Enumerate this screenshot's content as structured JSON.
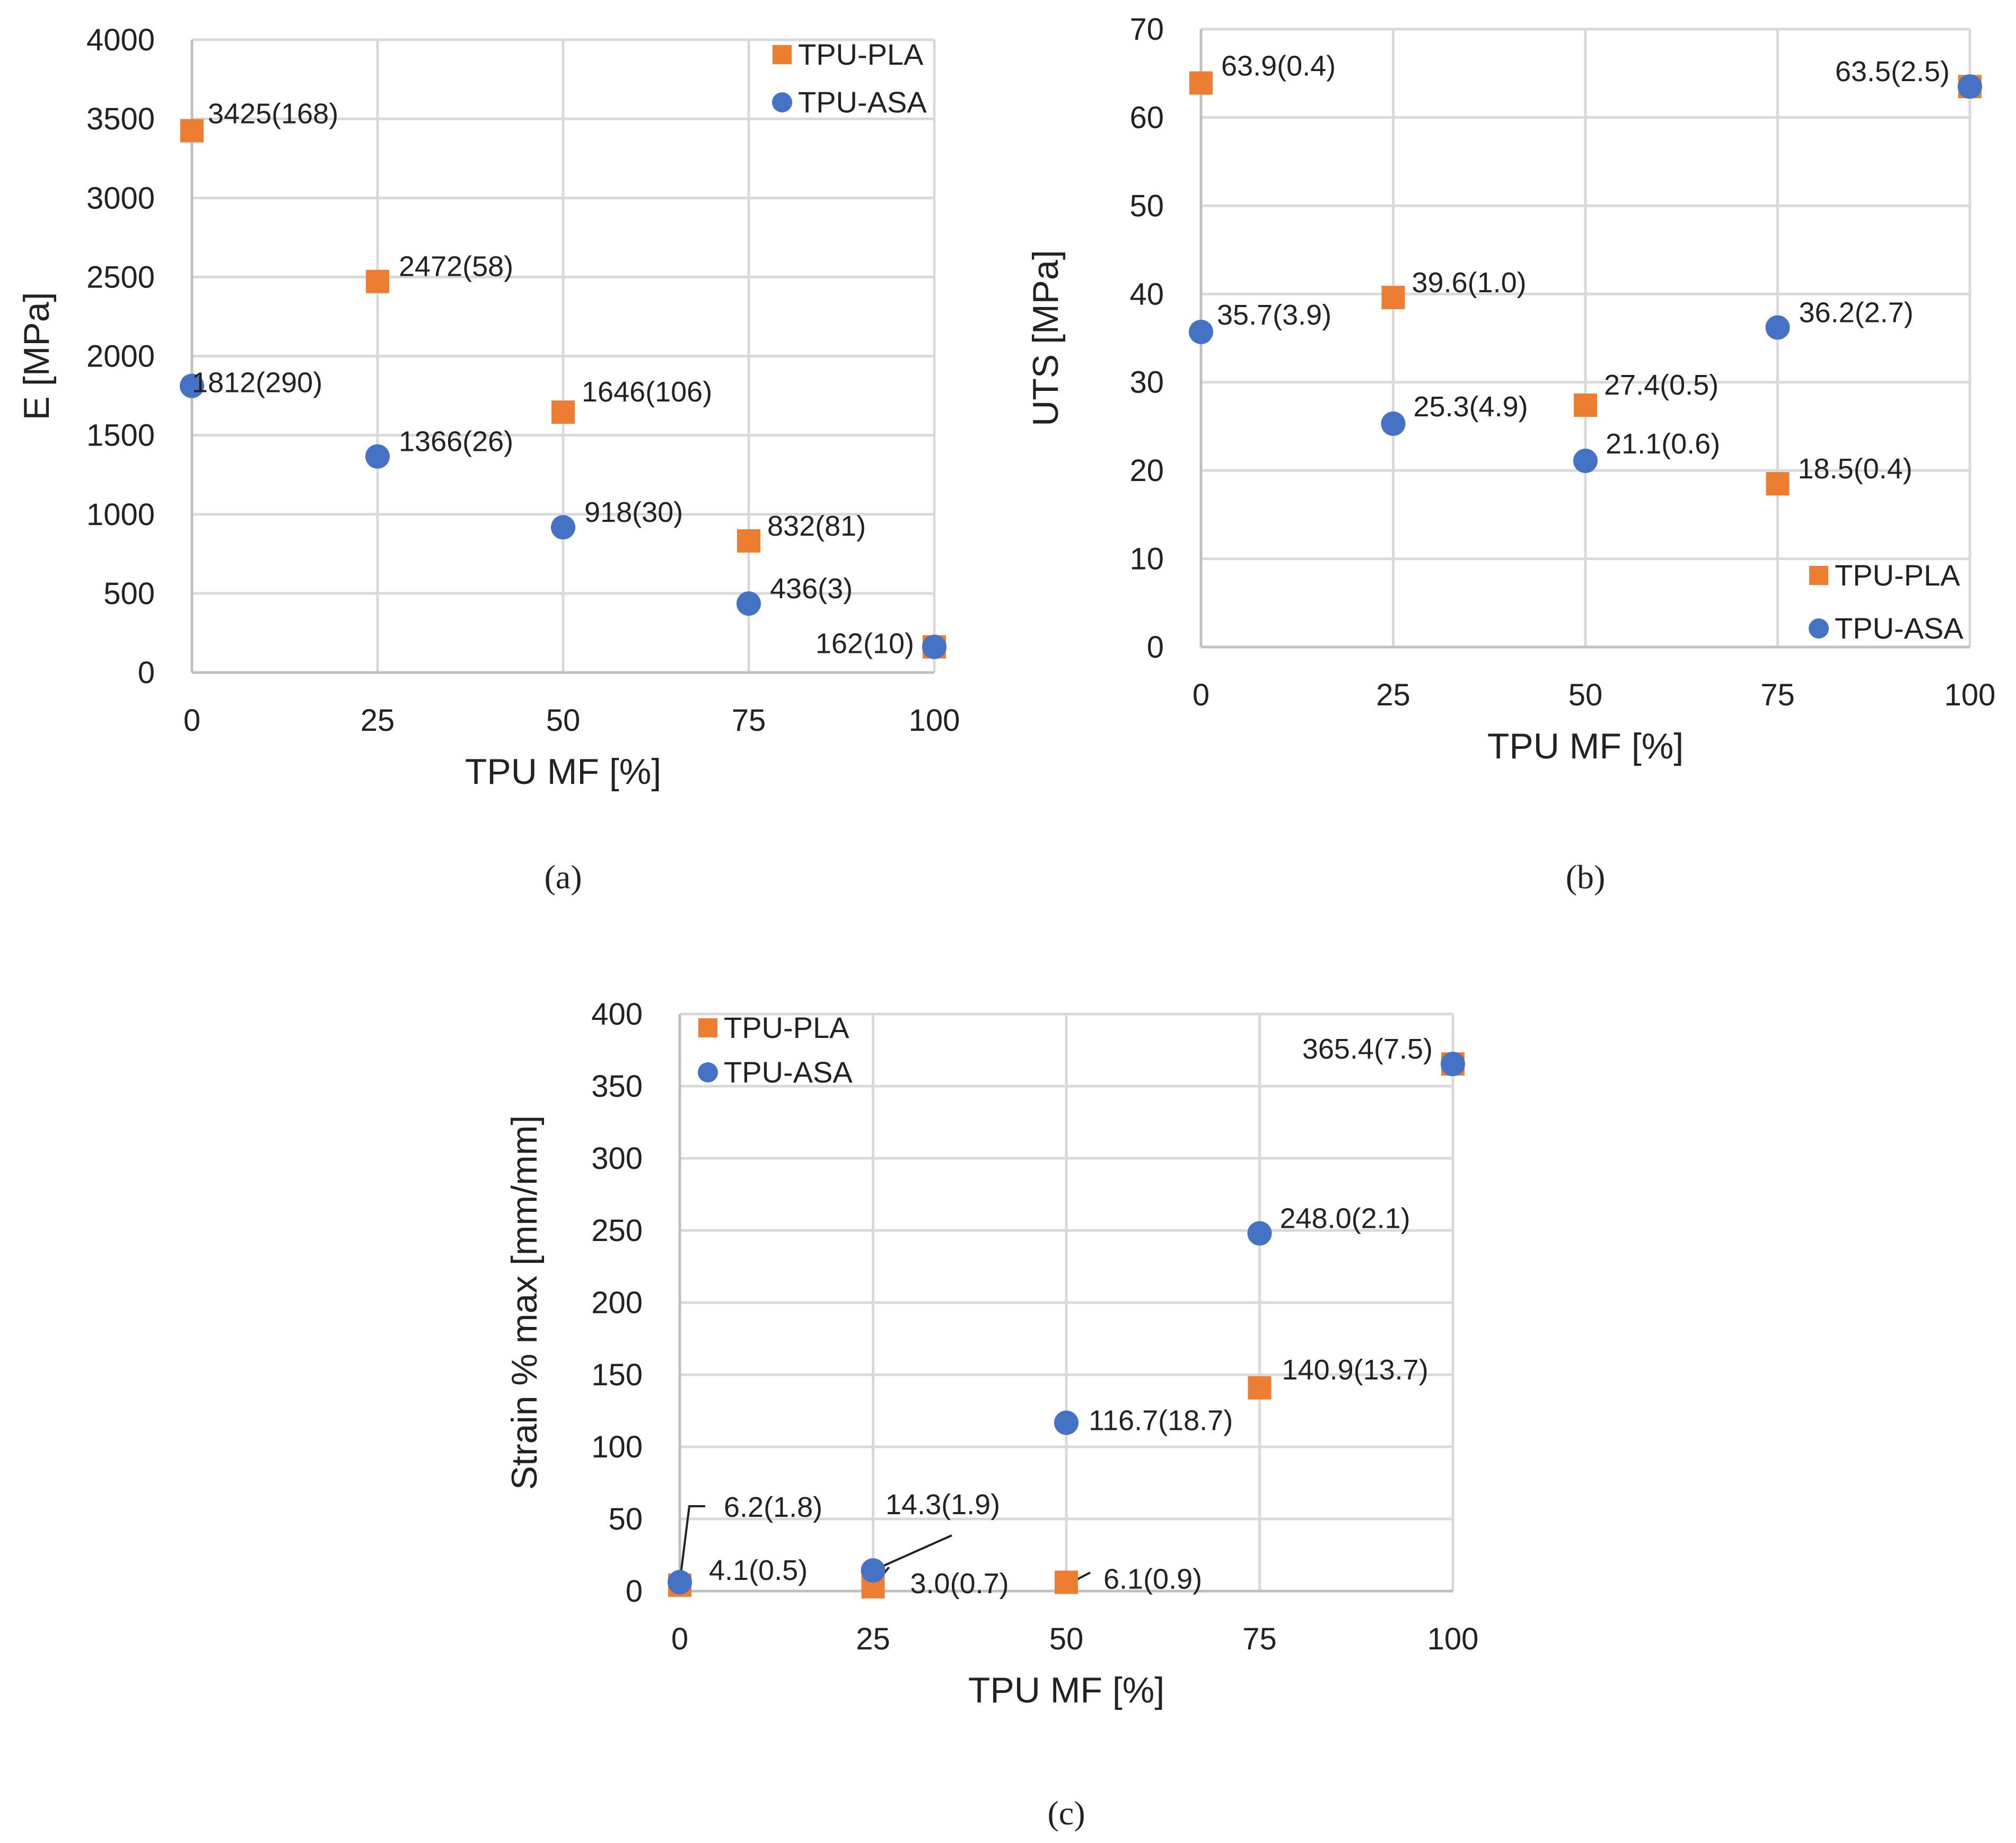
{
  "colors": {
    "pla": "#ED7D31",
    "asa": "#4472C4",
    "grid": "#D9D9D9",
    "axis": "#BFBFBF"
  },
  "chart_data": [
    {
      "type": "scatter",
      "panel_label": "(a)",
      "panel_letter": "a",
      "xlabel": "TPU MF [%]",
      "ylabel": "E [MPa]",
      "xlim": [
        0,
        100
      ],
      "ylim": [
        0,
        4000
      ],
      "xticks": [
        0,
        25,
        50,
        75,
        100
      ],
      "yticks": [
        0,
        500,
        1000,
        1500,
        2000,
        2500,
        3000,
        3500,
        4000
      ],
      "legend_position": "top-right",
      "series": [
        {
          "name": "TPU-PLA",
          "marker": "square",
          "x": [
            0,
            25,
            50,
            75,
            100
          ],
          "y": [
            3425,
            2472,
            1646,
            832,
            162
          ],
          "labels": [
            "3425(168)",
            "2472(58)",
            "1646(106)",
            "832(81)",
            "162(10)"
          ]
        },
        {
          "name": "TPU-ASA",
          "marker": "circle",
          "x": [
            0,
            25,
            50,
            75,
            100
          ],
          "y": [
            1812,
            1366,
            918,
            436,
            162
          ],
          "labels": [
            "1812(290)",
            "1366(26)",
            "918(30)",
            "436(3)",
            ""
          ]
        }
      ]
    },
    {
      "type": "scatter",
      "panel_label": "(b)",
      "panel_letter": "b",
      "xlabel": "TPU MF [%]",
      "ylabel": "UTS [MPa]",
      "xlim": [
        0,
        100
      ],
      "ylim": [
        0,
        70
      ],
      "xticks": [
        0,
        25,
        50,
        75,
        100
      ],
      "yticks": [
        0,
        10,
        20,
        30,
        40,
        50,
        60,
        70
      ],
      "legend_position": "bottom-right",
      "series": [
        {
          "name": "TPU-PLA",
          "marker": "square",
          "x": [
            0,
            25,
            50,
            75,
            100
          ],
          "y": [
            63.9,
            39.6,
            27.4,
            18.5,
            63.5
          ],
          "labels": [
            "63.9(0.4)",
            "39.6(1.0)",
            "27.4(0.5)",
            "18.5(0.4)",
            "63.5(2.5)"
          ]
        },
        {
          "name": "TPU-ASA",
          "marker": "circle",
          "x": [
            0,
            25,
            50,
            75,
            100
          ],
          "y": [
            35.7,
            25.3,
            21.1,
            36.2,
            63.5
          ],
          "labels": [
            "35.7(3.9)",
            "25.3(4.9)",
            "21.1(0.6)",
            "36.2(2.7)",
            ""
          ]
        }
      ]
    },
    {
      "type": "scatter",
      "panel_label": "(c)",
      "panel_letter": "c",
      "xlabel": "TPU MF [%]",
      "ylabel": "Strain % max [mm/mm]",
      "xlim": [
        0,
        100
      ],
      "ylim": [
        0,
        400
      ],
      "xticks": [
        0,
        25,
        50,
        75,
        100
      ],
      "yticks": [
        0,
        50,
        100,
        150,
        200,
        250,
        300,
        350,
        400
      ],
      "legend_position": "top-left",
      "series": [
        {
          "name": "TPU-PLA",
          "marker": "square",
          "x": [
            0,
            25,
            50,
            75,
            100
          ],
          "y": [
            4.1,
            3.0,
            6.1,
            140.9,
            365.4
          ],
          "labels": [
            "4.1(0.5)",
            "3.0(0.7)",
            "6.1(0.9)",
            "140.9(13.7)",
            "365.4(7.5)"
          ]
        },
        {
          "name": "TPU-ASA",
          "marker": "circle",
          "x": [
            0,
            25,
            50,
            75,
            100
          ],
          "y": [
            6.2,
            14.3,
            116.7,
            248.0,
            365.4
          ],
          "labels": [
            "6.2(1.8)",
            "14.3(1.9)",
            "116.7(18.7)",
            "248.0(2.1)",
            ""
          ]
        }
      ]
    }
  ]
}
